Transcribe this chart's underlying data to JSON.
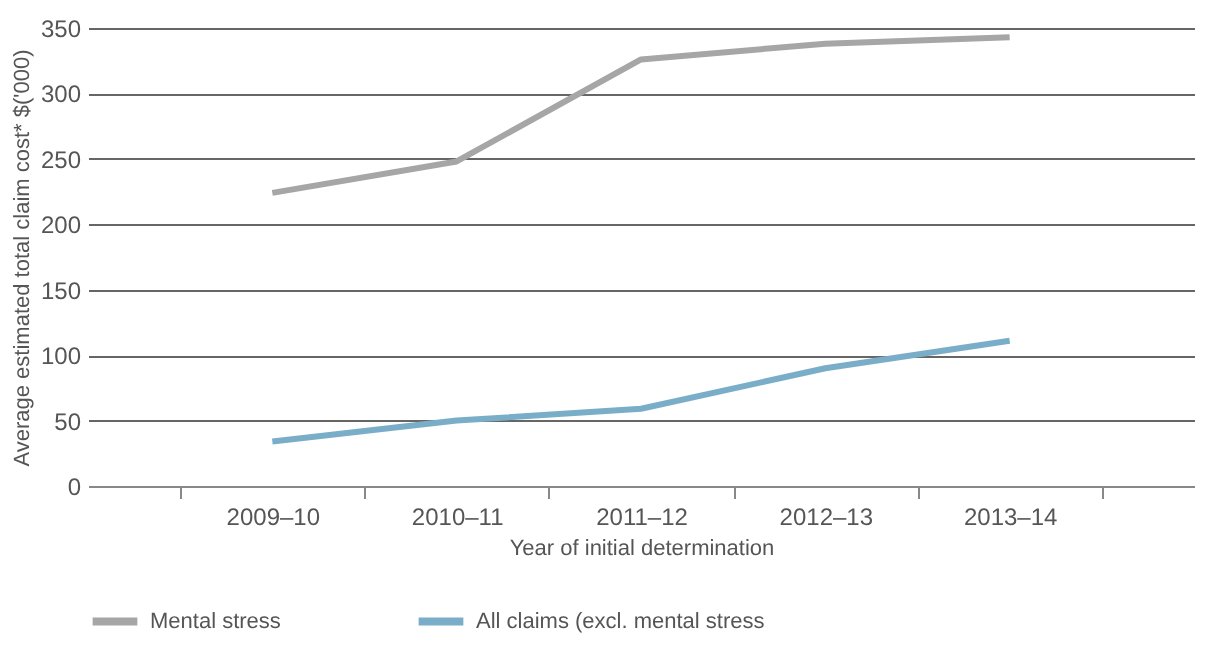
{
  "chart_data": {
    "type": "line",
    "xlabel": "Year of initial determination",
    "ylabel": "Average estimated total claim cost* $('000)",
    "categories": [
      "2009–10",
      "2010–11",
      "2011–12",
      "2012–13",
      "2013–14"
    ],
    "series": [
      {
        "name": "Mental stress",
        "color": "#a6a6a6",
        "values": [
          224,
          248,
          326,
          338,
          343
        ]
      },
      {
        "name": "All claims (excl. mental stress",
        "color": "#7aaec8",
        "values": [
          34,
          50,
          59,
          90,
          111
        ]
      }
    ],
    "ylim": [
      0,
      350
    ],
    "yticks": [
      0,
      50,
      100,
      150,
      200,
      250,
      300,
      350
    ],
    "grid": "y",
    "legend": "bottom",
    "marker": "none",
    "line_style": "solid"
  }
}
